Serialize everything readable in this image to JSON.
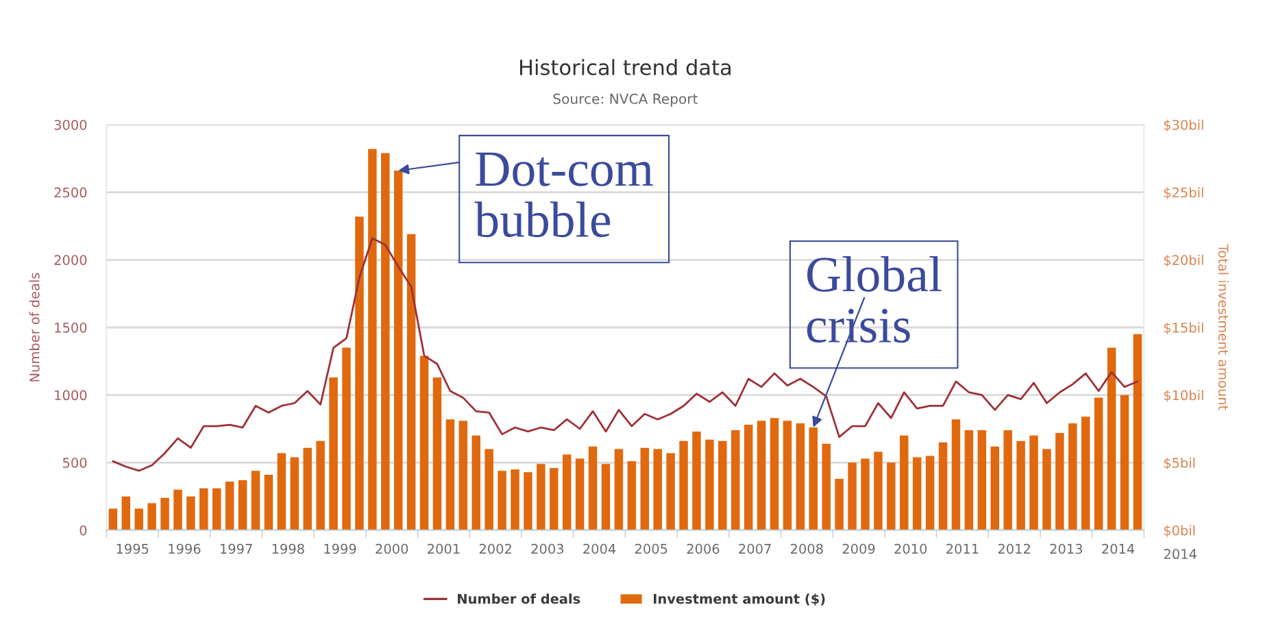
{
  "chart_data": {
    "type": "bar",
    "title": "Historical trend data",
    "subtitle": "Source: NVCA Report",
    "ylabel": "Number of deals",
    "y2label": "Total investment amount",
    "x": [
      1995.125,
      1995.375,
      1995.625,
      1995.875,
      1996.125,
      1996.375,
      1996.625,
      1996.875,
      1997.125,
      1997.375,
      1997.625,
      1997.875,
      1998.125,
      1998.375,
      1998.625,
      1998.875,
      1999.125,
      1999.375,
      1999.625,
      1999.875,
      2000.125,
      2000.375,
      2000.625,
      2000.875,
      2001.125,
      2001.375,
      2001.625,
      2001.875,
      2002.125,
      2002.375,
      2002.625,
      2002.875,
      2003.125,
      2003.375,
      2003.625,
      2003.875,
      2004.125,
      2004.375,
      2004.625,
      2004.875,
      2005.125,
      2005.375,
      2005.625,
      2005.875,
      2006.125,
      2006.375,
      2006.625,
      2006.875,
      2007.125,
      2007.375,
      2007.625,
      2007.875,
      2008.125,
      2008.375,
      2008.625,
      2008.875,
      2009.125,
      2009.375,
      2009.625,
      2009.875,
      2010.125,
      2010.375,
      2010.625,
      2010.875,
      2011.125,
      2011.375,
      2011.625,
      2011.875,
      2012.125,
      2012.375,
      2012.625,
      2012.875,
      2013.125,
      2013.375,
      2013.625,
      2013.875,
      2014.125,
      2014.375,
      2014.625,
      2014.875
    ],
    "series": [
      {
        "name": "Number of deals",
        "type": "line",
        "color": "#9e3036",
        "values": [
          510,
          470,
          440,
          480,
          570,
          680,
          610,
          770,
          770,
          780,
          760,
          920,
          870,
          920,
          940,
          1030,
          930,
          1350,
          1420,
          1870,
          2160,
          2110,
          1950,
          1800,
          1290,
          1230,
          1030,
          980,
          880,
          870,
          710,
          760,
          730,
          760,
          740,
          820,
          750,
          880,
          730,
          890,
          770,
          860,
          820,
          860,
          920,
          1010,
          950,
          1020,
          920,
          1120,
          1060,
          1160,
          1070,
          1120,
          1060,
          990,
          690,
          770,
          770,
          940,
          830,
          1020,
          900,
          920,
          920,
          1100,
          1020,
          1000,
          890,
          1000,
          970,
          1090,
          940,
          1020,
          1080,
          1160,
          1030,
          1170,
          1060,
          1100
        ]
      },
      {
        "name": "Investment amount ($)",
        "axis": "y2",
        "color": "#e0690f",
        "values": [
          1.6,
          2.5,
          1.6,
          2.0,
          2.4,
          3.0,
          2.5,
          3.1,
          3.1,
          3.6,
          3.7,
          4.4,
          4.1,
          5.7,
          5.4,
          6.1,
          6.6,
          11.3,
          13.5,
          23.2,
          28.2,
          27.9,
          26.6,
          21.9,
          12.9,
          11.3,
          8.2,
          8.1,
          7.0,
          6.0,
          4.4,
          4.5,
          4.3,
          4.9,
          4.6,
          5.6,
          5.3,
          6.2,
          4.9,
          6.0,
          5.1,
          6.1,
          6.0,
          5.7,
          6.6,
          7.3,
          6.7,
          6.6,
          7.4,
          7.8,
          8.1,
          8.3,
          8.1,
          7.9,
          7.6,
          6.4,
          3.8,
          5.0,
          5.3,
          5.8,
          5.0,
          7.0,
          5.4,
          5.5,
          6.5,
          8.2,
          7.4,
          7.4,
          6.2,
          7.4,
          6.6,
          7.0,
          6.0,
          7.2,
          7.9,
          8.4,
          9.8,
          13.5,
          10.0,
          14.5
        ]
      }
    ],
    "xlim": [
      1995,
      2015
    ],
    "xticks": [
      {
        "value": 1995,
        "label": null
      },
      {
        "value": 1996,
        "label": null
      },
      {
        "value": 1997,
        "label": null
      },
      {
        "value": 1998,
        "label": null
      },
      {
        "value": 1999,
        "label": null
      },
      {
        "value": 2000,
        "label": null
      },
      {
        "value": 2001,
        "label": null
      },
      {
        "value": 2002,
        "label": null
      },
      {
        "value": 2003,
        "label": null
      },
      {
        "value": 2004,
        "label": null
      },
      {
        "value": 2005,
        "label": null
      },
      {
        "value": 2006,
        "label": null
      },
      {
        "value": 2007,
        "label": null
      },
      {
        "value": 2008,
        "label": null
      },
      {
        "value": 2009,
        "label": null
      },
      {
        "value": 2010,
        "label": null
      },
      {
        "value": 2011,
        "label": null
      },
      {
        "value": 2012,
        "label": null
      },
      {
        "value": 2013,
        "label": null
      },
      {
        "value": 2014,
        "label": null
      },
      {
        "value": 2015,
        "label": null
      },
      {
        "value": 1995.5,
        "label": "1995"
      },
      {
        "value": 1996.5,
        "label": "1996"
      },
      {
        "value": 1997.5,
        "label": "1997"
      },
      {
        "value": 1998.5,
        "label": "1998"
      },
      {
        "value": 1999.5,
        "label": "1999"
      },
      {
        "value": 2000.5,
        "label": "2000"
      },
      {
        "value": 2001.5,
        "label": "2001"
      },
      {
        "value": 2002.5,
        "label": "2002"
      },
      {
        "value": 2003.5,
        "label": "2003"
      },
      {
        "value": 2004.5,
        "label": "2004"
      },
      {
        "value": 2005.5,
        "label": "2005"
      },
      {
        "value": 2006.5,
        "label": "2006"
      },
      {
        "value": 2007.5,
        "label": "2007"
      },
      {
        "value": 2008.5,
        "label": "2008"
      },
      {
        "value": 2009.5,
        "label": "2009"
      },
      {
        "value": 2010.5,
        "label": "2010"
      },
      {
        "value": 2011.5,
        "label": "2011"
      },
      {
        "value": 2012.5,
        "label": "2012"
      },
      {
        "value": 2013.5,
        "label": "2013"
      },
      {
        "value": 2014.5,
        "label": "2014"
      }
    ],
    "ylim": [
      0,
      3000
    ],
    "yticks": [
      0,
      500,
      1000,
      1500,
      2000,
      2500,
      3000
    ],
    "y2lim": [
      0,
      30
    ],
    "y2ticks": [
      {
        "value": 0,
        "label": "$0bil"
      },
      {
        "value": 5,
        "label": "$5bil"
      },
      {
        "value": 10,
        "label": "$10bil"
      },
      {
        "value": 15,
        "label": "$15bil"
      },
      {
        "value": 20,
        "label": "$20bil"
      },
      {
        "value": 25,
        "label": "$25bil"
      },
      {
        "value": 30,
        "label": "$30bil"
      }
    ],
    "grid": "y",
    "legend": "bottom",
    "annotations": [
      {
        "text": "Dot-com\nbubble",
        "x": 2000.625,
        "y": 2660
      },
      {
        "text": "Global\ncrisis",
        "x": 2008.625,
        "y": 760
      },
      "2014"
    ]
  }
}
